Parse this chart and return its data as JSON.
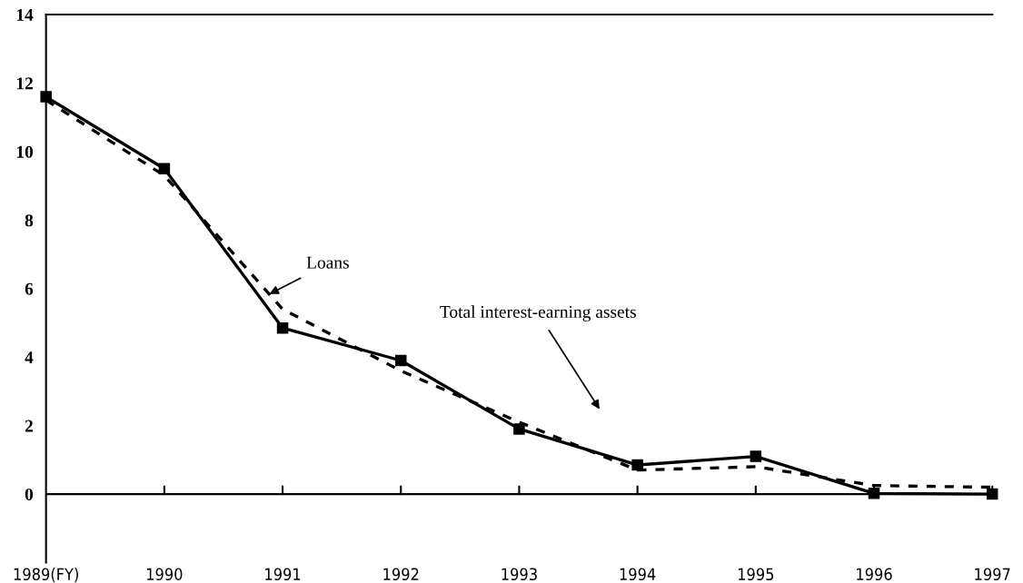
{
  "chart_data": {
    "type": "line",
    "categories": [
      "1989(FY)",
      "1990",
      "1991",
      "1992",
      "1993",
      "1994",
      "1995",
      "1996",
      "1997"
    ],
    "series": [
      {
        "name": "Loans",
        "color": "#000000",
        "line_style": "dashed",
        "marker": "none",
        "values": [
          11.5,
          9.3,
          5.4,
          3.6,
          2.1,
          0.7,
          0.8,
          0.25,
          0.2
        ]
      },
      {
        "name": "Total interest-earning assets",
        "color": "#000000",
        "line_style": "solid",
        "marker": "square",
        "values": [
          11.6,
          9.5,
          4.85,
          3.9,
          1.9,
          0.85,
          1.1,
          0.02,
          0.0
        ]
      }
    ],
    "ylim": [
      -2,
      14
    ],
    "yticks": [
      0,
      2,
      4,
      6,
      8,
      10,
      12,
      14
    ],
    "ref_lines": [
      {
        "axis": "y",
        "value": 0
      }
    ],
    "grid": false,
    "legend": false
  }
}
